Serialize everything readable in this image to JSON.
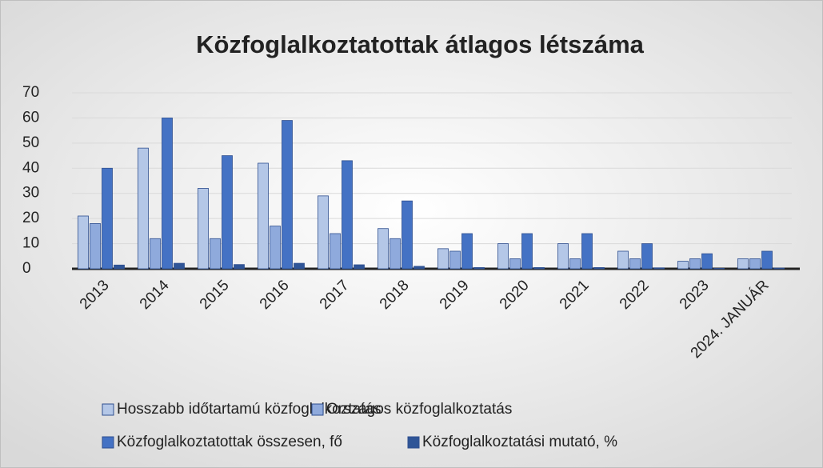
{
  "chart_data": {
    "type": "bar",
    "title": "Közfoglalkoztatottak átlagos létszáma",
    "categories": [
      "2013",
      "2014",
      "2015",
      "2016",
      "2017",
      "2018",
      "2019",
      "2020",
      "2021",
      "2022",
      "2023",
      "2024. JANUÁR"
    ],
    "series": [
      {
        "name": "Hosszabb időtartamú közfoglalkoztatás",
        "color": "#b4c7e7",
        "values": [
          21,
          48,
          32,
          42,
          29,
          16,
          8,
          10,
          10,
          7,
          3,
          4
        ]
      },
      {
        "name": "Országos közfoglalkoztatás",
        "color": "#8faadc",
        "values": [
          18,
          12,
          12,
          17,
          14,
          12,
          7,
          4,
          4,
          4,
          4,
          4
        ]
      },
      {
        "name": "Közfoglalkoztatottak összesen, fő",
        "color": "#4472c4",
        "values": [
          40,
          60,
          45,
          59,
          43,
          27,
          14,
          14,
          14,
          10,
          6,
          7
        ]
      },
      {
        "name": "Közfoglalkoztatási mutató, %",
        "color": "#2f5597",
        "values": [
          1.5,
          2.2,
          1.7,
          2.2,
          1.6,
          1.0,
          0.5,
          0.5,
          0.5,
          0.4,
          0.2,
          0.3
        ]
      }
    ],
    "ylim": [
      0,
      70
    ],
    "yticks": [
      0,
      10,
      20,
      30,
      40,
      50,
      60,
      70
    ],
    "grid": true,
    "legend": "bottom"
  }
}
